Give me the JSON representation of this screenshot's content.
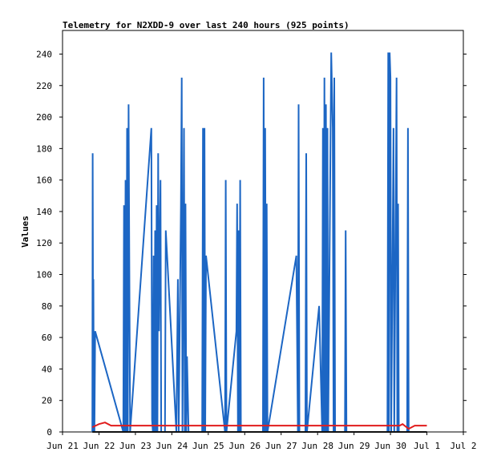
{
  "chart_data": {
    "type": "line",
    "title": "Telemetry for N2XDD-9 over last 240 hours (925 points)",
    "xlabel": "",
    "ylabel": "Values",
    "x_ticks": [
      "Jun 21",
      "Jun 22",
      "Jun 23",
      "Jun 24",
      "Jun 25",
      "Jun 26",
      "Jun 27",
      "Jun 28",
      "Jun 29",
      "Jun 30",
      "Jul 1",
      "Jul 2"
    ],
    "y_ticks": [
      0,
      20,
      40,
      60,
      80,
      100,
      120,
      140,
      160,
      180,
      200,
      220,
      240
    ],
    "xlim": [
      "2024-06-21",
      "2024-07-02"
    ],
    "ylim": [
      0,
      255
    ],
    "grid": false,
    "colors": {
      "series_blue": "#1c66c4",
      "series_red": "#e11c1c",
      "series_black": "#111111",
      "axis": "#000000"
    },
    "series": [
      {
        "color": "#1c66c4",
        "points": [
          [
            "2024-06-21T19:40",
            0
          ],
          [
            "2024-06-21T19:50",
            177
          ],
          [
            "2024-06-21T20:00",
            112
          ],
          [
            "2024-06-21T20:10",
            0
          ],
          [
            "2024-06-21T20:20",
            97
          ],
          [
            "2024-06-21T20:30",
            48
          ],
          [
            "2024-06-21T21:00",
            0
          ],
          [
            "2024-06-21T21:30",
            64
          ],
          [
            "2024-06-22T16:00",
            0
          ],
          [
            "2024-06-22T16:30",
            144
          ],
          [
            "2024-06-22T17:00",
            0
          ],
          [
            "2024-06-22T17:30",
            160
          ],
          [
            "2024-06-22T18:00",
            0
          ],
          [
            "2024-06-22T18:30",
            193
          ],
          [
            "2024-06-22T19:00",
            0
          ],
          [
            "2024-06-22T19:30",
            208
          ],
          [
            "2024-06-22T20:30",
            0
          ],
          [
            "2024-06-23T10:30",
            193
          ],
          [
            "2024-06-23T11:00",
            8
          ],
          [
            "2024-06-23T11:30",
            0
          ],
          [
            "2024-06-23T12:00",
            112
          ],
          [
            "2024-06-23T12:30",
            0
          ],
          [
            "2024-06-23T13:00",
            128
          ],
          [
            "2024-06-23T13:30",
            0
          ],
          [
            "2024-06-23T14:00",
            144
          ],
          [
            "2024-06-23T14:30",
            0
          ],
          [
            "2024-06-23T15:00",
            177
          ],
          [
            "2024-06-23T15:30",
            64
          ],
          [
            "2024-06-23T16:30",
            160
          ],
          [
            "2024-06-23T17:00",
            0
          ],
          [
            "2024-06-23T19:30",
            0
          ],
          [
            "2024-06-23T20:00",
            128
          ],
          [
            "2024-06-24T03:00",
            0
          ],
          [
            "2024-06-24T04:00",
            97
          ],
          [
            "2024-06-24T04:30",
            0
          ],
          [
            "2024-06-24T06:00",
            144
          ],
          [
            "2024-06-24T06:30",
            225
          ],
          [
            "2024-06-24T07:00",
            0
          ],
          [
            "2024-06-24T08:00",
            193
          ],
          [
            "2024-06-24T08:30",
            0
          ],
          [
            "2024-06-24T09:00",
            145
          ],
          [
            "2024-06-24T09:30",
            0
          ],
          [
            "2024-06-24T10:00",
            48
          ],
          [
            "2024-06-24T11:00",
            0
          ],
          [
            "2024-06-24T20:00",
            0
          ],
          [
            "2024-06-24T20:30",
            193
          ],
          [
            "2024-06-24T21:00",
            0
          ],
          [
            "2024-06-24T21:30",
            193
          ],
          [
            "2024-06-24T22:00",
            0
          ],
          [
            "2024-06-24T22:30",
            112
          ],
          [
            "2024-06-25T11:00",
            0
          ],
          [
            "2024-06-25T11:30",
            160
          ],
          [
            "2024-06-25T12:00",
            0
          ],
          [
            "2024-06-25T18:30",
            64
          ],
          [
            "2024-06-25T19:00",
            145
          ],
          [
            "2024-06-25T19:30",
            0
          ],
          [
            "2024-06-25T20:00",
            128
          ],
          [
            "2024-06-25T20:30",
            0
          ],
          [
            "2024-06-25T21:00",
            160
          ],
          [
            "2024-06-25T21:30",
            0
          ],
          [
            "2024-06-26T12:00",
            0
          ],
          [
            "2024-06-26T12:30",
            225
          ],
          [
            "2024-06-26T13:00",
            0
          ],
          [
            "2024-06-26T13:30",
            193
          ],
          [
            "2024-06-26T14:00",
            0
          ],
          [
            "2024-06-26T14:30",
            145
          ],
          [
            "2024-06-26T15:00",
            0
          ],
          [
            "2024-06-27T10:00",
            112
          ],
          [
            "2024-06-27T11:00",
            0
          ],
          [
            "2024-06-27T11:30",
            208
          ],
          [
            "2024-06-27T12:00",
            0
          ],
          [
            "2024-06-27T16:00",
            0
          ],
          [
            "2024-06-27T16:30",
            177
          ],
          [
            "2024-06-27T17:00",
            0
          ],
          [
            "2024-06-28T01:00",
            80
          ],
          [
            "2024-06-28T03:00",
            0
          ],
          [
            "2024-06-28T03:30",
            193
          ],
          [
            "2024-06-28T04:00",
            0
          ],
          [
            "2024-06-28T04:30",
            225
          ],
          [
            "2024-06-28T05:00",
            0
          ],
          [
            "2024-06-28T05:30",
            208
          ],
          [
            "2024-06-28T06:00",
            0
          ],
          [
            "2024-06-28T06:30",
            193
          ],
          [
            "2024-06-28T07:00",
            0
          ],
          [
            "2024-06-28T09:00",
            241
          ],
          [
            "2024-06-28T10:00",
            193
          ],
          [
            "2024-06-28T10:30",
            0
          ],
          [
            "2024-06-28T11:00",
            225
          ],
          [
            "2024-06-28T11:30",
            0
          ],
          [
            "2024-06-28T18:00",
            0
          ],
          [
            "2024-06-28T18:30",
            128
          ],
          [
            "2024-06-28T19:00",
            0
          ],
          [
            "2024-06-29T22:00",
            0
          ],
          [
            "2024-06-29T22:30",
            241
          ],
          [
            "2024-06-29T23:00",
            0
          ],
          [
            "2024-06-29T23:30",
            241
          ],
          [
            "2024-06-30T00:00",
            225
          ],
          [
            "2024-06-30T00:30",
            0
          ],
          [
            "2024-06-30T02:00",
            193
          ],
          [
            "2024-06-30T02:30",
            0
          ],
          [
            "2024-06-30T04:00",
            225
          ],
          [
            "2024-06-30T04:30",
            0
          ],
          [
            "2024-06-30T05:00",
            145
          ],
          [
            "2024-06-30T05:30",
            0
          ],
          [
            "2024-06-30T11:00",
            0
          ],
          [
            "2024-06-30T11:30",
            193
          ],
          [
            "2024-06-30T12:00",
            0
          ]
        ]
      },
      {
        "color": "#e11c1c",
        "points": [
          [
            "2024-06-21T19:40",
            3
          ],
          [
            "2024-06-22T00:00",
            5
          ],
          [
            "2024-06-22T04:00",
            6
          ],
          [
            "2024-06-22T08:00",
            4
          ],
          [
            "2024-06-23T00:00",
            4
          ],
          [
            "2024-06-24T00:00",
            4
          ],
          [
            "2024-06-25T00:00",
            4
          ],
          [
            "2024-06-26T00:00",
            4
          ],
          [
            "2024-06-27T00:00",
            4
          ],
          [
            "2024-06-28T00:00",
            4
          ],
          [
            "2024-06-29T00:00",
            4
          ],
          [
            "2024-06-30T00:00",
            4
          ],
          [
            "2024-06-30T06:00",
            4
          ],
          [
            "2024-06-30T08:00",
            5
          ],
          [
            "2024-06-30T12:00",
            2
          ],
          [
            "2024-06-30T16:00",
            4
          ],
          [
            "2024-07-01T00:00",
            4
          ]
        ]
      },
      {
        "color": "#111111",
        "points": [
          [
            "2024-06-21T19:40",
            0
          ],
          [
            "2024-07-01T00:00",
            0
          ]
        ]
      }
    ]
  }
}
